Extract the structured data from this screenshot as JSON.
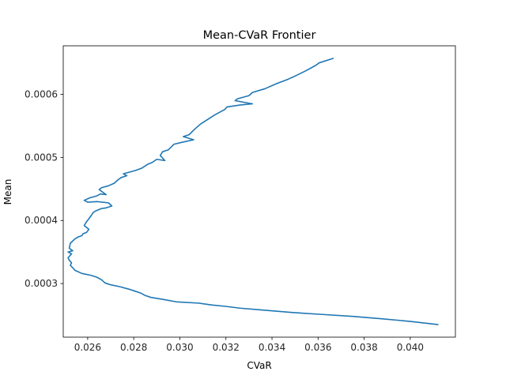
{
  "chart_data": {
    "type": "line",
    "title": "Mean-CVaR Frontier",
    "xlabel": "CVaR",
    "ylabel": "Mean",
    "xlim": [
      0.02494,
      0.04196
    ],
    "ylim": [
      0.000215,
      0.000677
    ],
    "x_ticks": [
      "0.026",
      "0.028",
      "0.030",
      "0.032",
      "0.034",
      "0.036",
      "0.038",
      "0.040"
    ],
    "x_tick_values": [
      0.026,
      0.028,
      0.03,
      0.032,
      0.034,
      0.036,
      0.038,
      0.04
    ],
    "y_ticks": [
      "0.0003",
      "0.0004",
      "0.0005",
      "0.0006"
    ],
    "y_tick_values": [
      0.0003,
      0.0004,
      0.0005,
      0.0006
    ],
    "grid": false,
    "series": [
      {
        "color": "#1f77b4",
        "points": [
          [
            0.03665,
            0.000657
          ],
          [
            0.03605,
            0.00065
          ],
          [
            0.0359,
            0.000646
          ],
          [
            0.03545,
            0.000637
          ],
          [
            0.035,
            0.000629
          ],
          [
            0.0347,
            0.000624
          ],
          [
            0.0342,
            0.000617
          ],
          [
            0.0337,
            0.000609
          ],
          [
            0.03315,
            0.000603
          ],
          [
            0.033,
            0.000598
          ],
          [
            0.0325,
            0.000593
          ],
          [
            0.0324,
            0.00059
          ],
          [
            0.03315,
            0.000585
          ],
          [
            0.0326,
            0.000583
          ],
          [
            0.03205,
            0.00058
          ],
          [
            0.03195,
            0.000576
          ],
          [
            0.03175,
            0.000572
          ],
          [
            0.0315,
            0.000567
          ],
          [
            0.0312,
            0.00056
          ],
          [
            0.0309,
            0.000553
          ],
          [
            0.03065,
            0.000545
          ],
          [
            0.0304,
            0.000536
          ],
          [
            0.03015,
            0.000533
          ],
          [
            0.0306,
            0.000528
          ],
          [
            0.0301,
            0.000524
          ],
          [
            0.02975,
            0.000521
          ],
          [
            0.0295,
            0.000512
          ],
          [
            0.02925,
            0.000509
          ],
          [
            0.02915,
            0.000503
          ],
          [
            0.02935,
            0.000495
          ],
          [
            0.029,
            0.000497
          ],
          [
            0.0288,
            0.000492
          ],
          [
            0.0286,
            0.000489
          ],
          [
            0.02835,
            0.000483
          ],
          [
            0.02805,
            0.000479
          ],
          [
            0.02775,
            0.000476
          ],
          [
            0.02755,
            0.000474
          ],
          [
            0.0277,
            0.000471
          ],
          [
            0.02745,
            0.000468
          ],
          [
            0.0273,
            0.000464
          ],
          [
            0.02715,
            0.000459
          ],
          [
            0.0269,
            0.000455
          ],
          [
            0.0266,
            0.000452
          ],
          [
            0.0265,
            0.000449
          ],
          [
            0.0268,
            0.000441
          ],
          [
            0.02655,
            0.000442
          ],
          [
            0.0264,
            0.000439
          ],
          [
            0.0261,
            0.000436
          ],
          [
            0.02585,
            0.000432
          ],
          [
            0.026,
            0.000429
          ],
          [
            0.0264,
            0.00043
          ],
          [
            0.0269,
            0.000428
          ],
          [
            0.02705,
            0.000423
          ],
          [
            0.0268,
            0.00042
          ],
          [
            0.0266,
            0.000419
          ],
          [
            0.0264,
            0.000416
          ],
          [
            0.02625,
            0.000413
          ],
          [
            0.0261,
            0.000405
          ],
          [
            0.02595,
            0.000398
          ],
          [
            0.02585,
            0.000392
          ],
          [
            0.02605,
            0.000386
          ],
          [
            0.02595,
            0.000381
          ],
          [
            0.0258,
            0.000379
          ],
          [
            0.02575,
            0.000376
          ],
          [
            0.0256,
            0.000374
          ],
          [
            0.02545,
            0.000371
          ],
          [
            0.02525,
            0.000364
          ],
          [
            0.0252,
            0.000356
          ],
          [
            0.02535,
            0.000352
          ],
          [
            0.02515,
            0.00035
          ],
          [
            0.0253,
            0.000347
          ],
          [
            0.02515,
            0.000341
          ],
          [
            0.0252,
            0.000337
          ],
          [
            0.0253,
            0.000333
          ],
          [
            0.02525,
            0.000329
          ],
          [
            0.02535,
            0.000325
          ],
          [
            0.02545,
            0.000321
          ],
          [
            0.02575,
            0.000316
          ],
          [
            0.02615,
            0.000313
          ],
          [
            0.0264,
            0.00031
          ],
          [
            0.0266,
            0.000306
          ],
          [
            0.02675,
            0.000301
          ],
          [
            0.027,
            0.000298
          ],
          [
            0.0274,
            0.000295
          ],
          [
            0.0278,
            0.000291
          ],
          [
            0.02805,
            0.000288
          ],
          [
            0.0283,
            0.000285
          ],
          [
            0.0285,
            0.000281
          ],
          [
            0.02875,
            0.000278
          ],
          [
            0.02925,
            0.000275
          ],
          [
            0.02985,
            0.000271
          ],
          [
            0.0308,
            0.000269
          ],
          [
            0.0314,
            0.000266
          ],
          [
            0.03195,
            0.000264
          ],
          [
            0.0326,
            0.000261
          ],
          [
            0.0336,
            0.000258
          ],
          [
            0.0349,
            0.000254
          ],
          [
            0.0362,
            0.000251
          ],
          [
            0.0375,
            0.000248
          ],
          [
            0.0388,
            0.000244
          ],
          [
            0.04,
            0.00024
          ],
          [
            0.0412,
            0.000235
          ]
        ]
      }
    ]
  }
}
